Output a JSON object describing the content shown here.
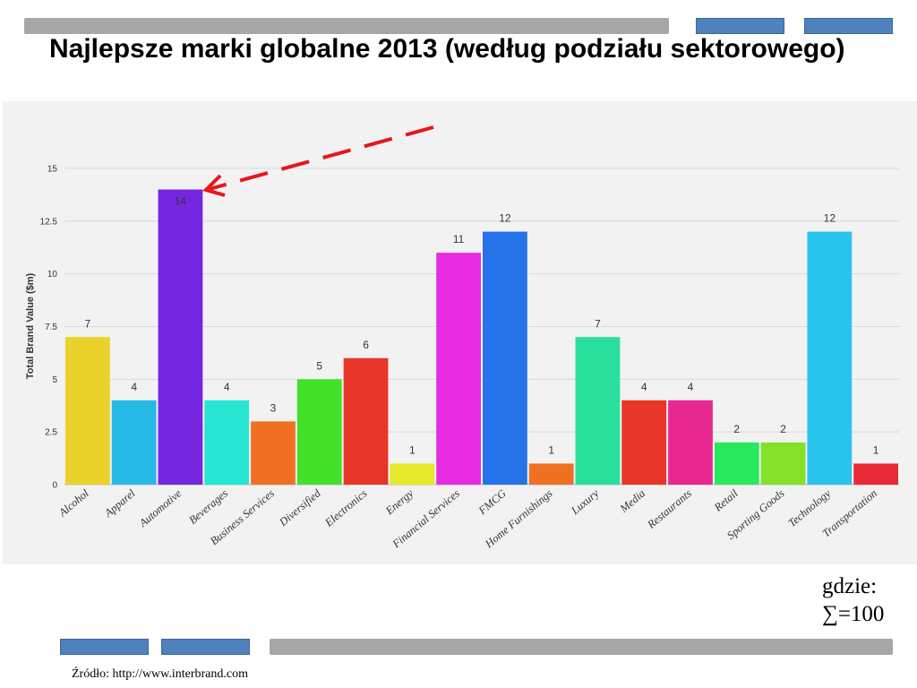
{
  "theme": {
    "accent_blue": "#4F81BD",
    "bar_gray": "#A6A6A6",
    "panel_bg": "#F2F2F2",
    "arrow_red": "#E8161B"
  },
  "note": {
    "label": "gdzie:",
    "sum": "∑=100"
  },
  "source": "Źródło: http://www.interbrand.com",
  "chart_data": {
    "type": "bar",
    "title": "Najlepsze marki globalne 2013 (według podziału sektorowego)",
    "ylabel": "Total Brand Value ($m)",
    "ylim": [
      0,
      15
    ],
    "yticks": [
      0,
      2.5,
      5,
      7.5,
      10,
      12.5,
      15
    ],
    "grid": true,
    "legend": "none",
    "categories": [
      "Alcohol",
      "Apparel",
      "Automotive",
      "Beverages",
      "Business Services",
      "Diversified",
      "Electronics",
      "Energy",
      "Financial Services",
      "FMCG",
      "Home Furnishings",
      "Luxury",
      "Media",
      "Restaurants",
      "Retail",
      "Sporting Goods",
      "Technology",
      "Transportation"
    ],
    "values": [
      7,
      4,
      14,
      4,
      3,
      5,
      6,
      1,
      11,
      12,
      1,
      7,
      4,
      4,
      2,
      2,
      12,
      1
    ],
    "colors": [
      "#EBD22A",
      "#27B9E6",
      "#7426E0",
      "#27E6D4",
      "#F07124",
      "#43E02A",
      "#E8352A",
      "#E6E82A",
      "#E82AE0",
      "#2672E8",
      "#F07124",
      "#28E09C",
      "#E8352A",
      "#E82890",
      "#28E85C",
      "#84E028",
      "#28C4EC",
      "#E82A36"
    ]
  }
}
